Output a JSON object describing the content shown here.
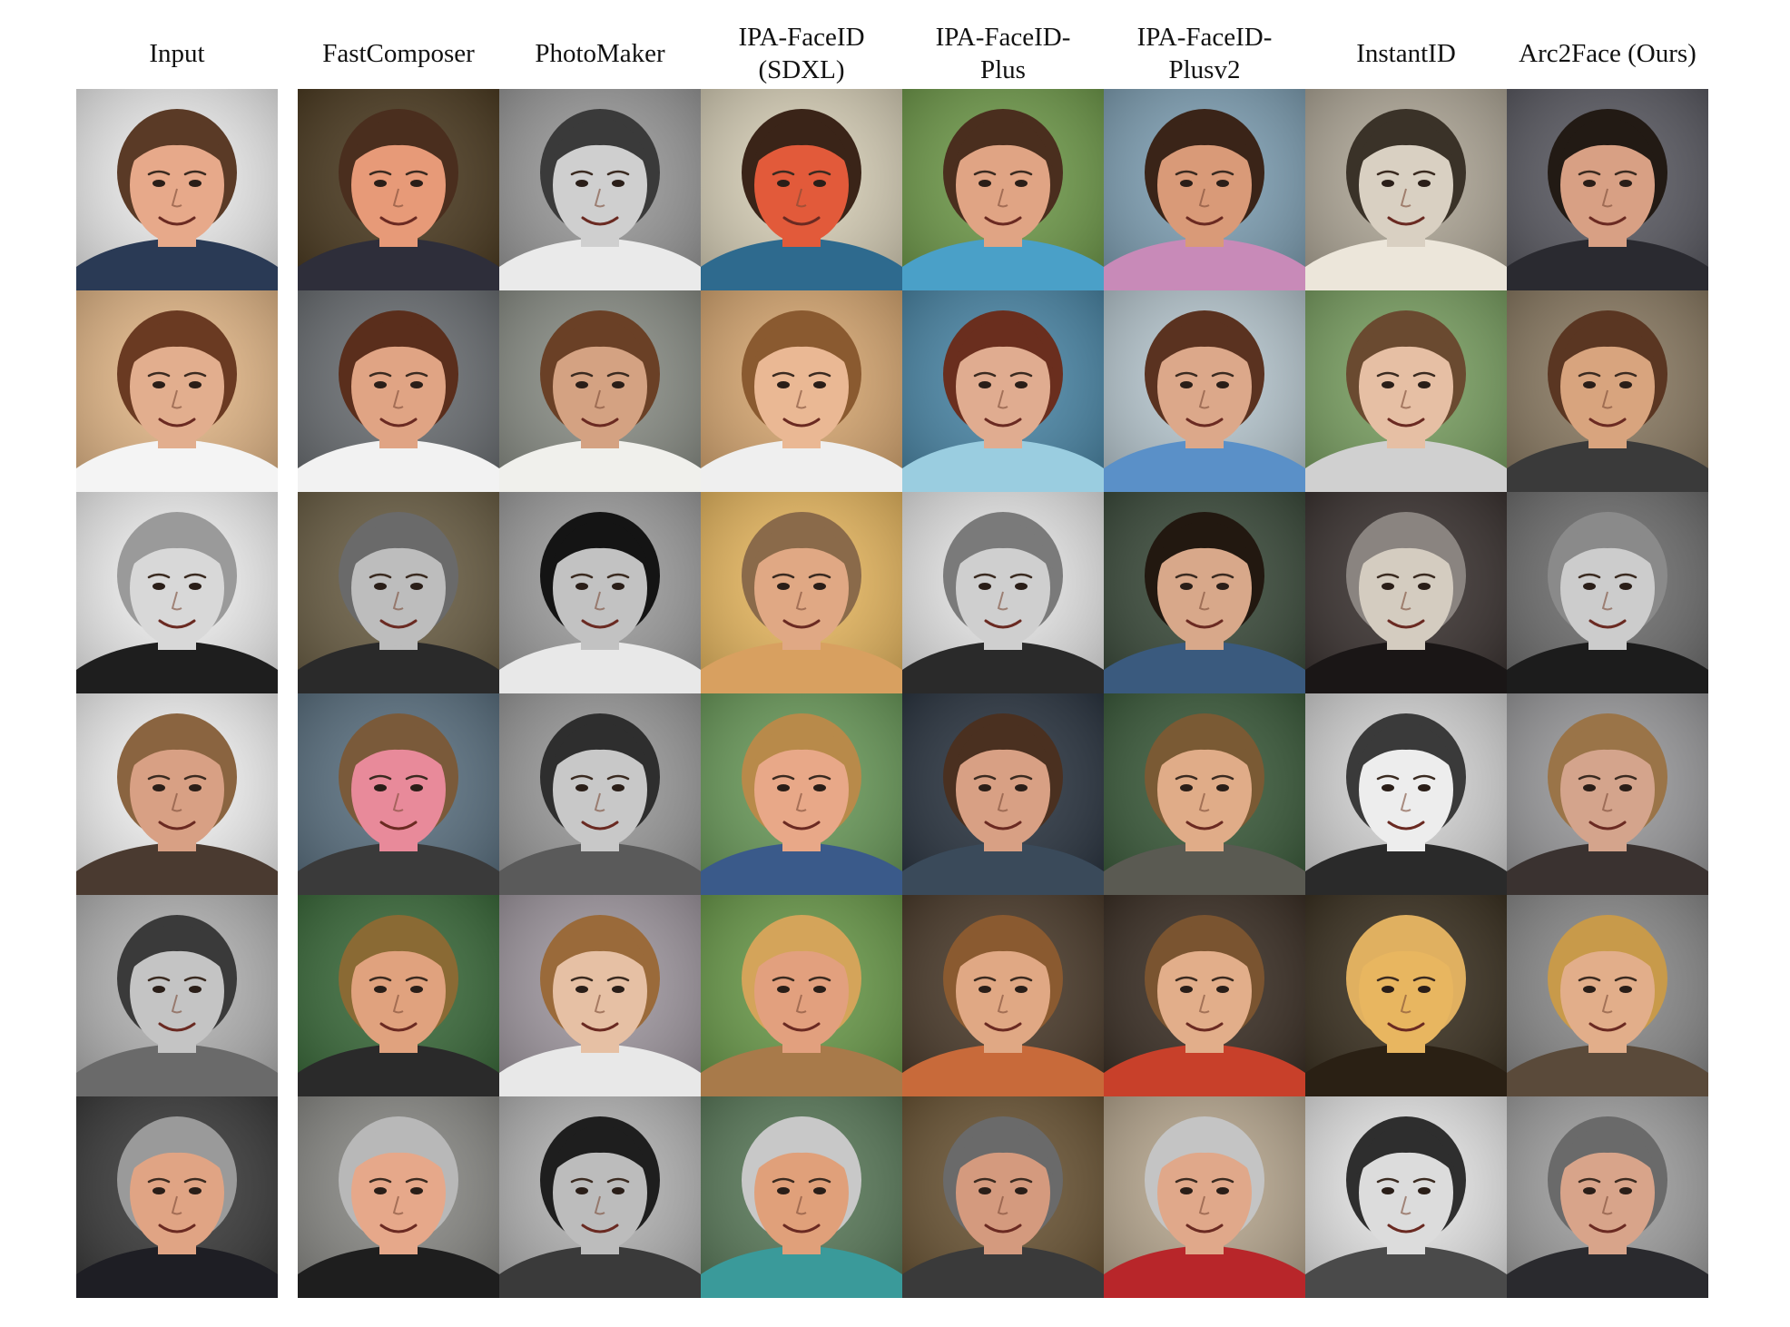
{
  "figure": {
    "columns": [
      "Input",
      "FastComposer",
      "PhotoMaker",
      "IPA-FaceID\n(SDXL)",
      "IPA-FaceID-\nPlus",
      "IPA-FaceID-\nPlusv2",
      "InstantID",
      "Arc2Face (Ours)"
    ],
    "rows": [
      {
        "cells": [
          {
            "bg": "#ececec",
            "skin": "#e7a98a",
            "hair": "#5a3a26",
            "cloth": "#2a3a55"
          },
          {
            "bg": "#4b3a20",
            "skin": "#e79a78",
            "hair": "#4a2e1e",
            "cloth": "#2e2e3a"
          },
          {
            "bg": "#9a9a9a",
            "skin": "#cfcfcf",
            "hair": "#3a3a3a",
            "cloth": "#eaeaea"
          },
          {
            "bg": "#d8d0b8",
            "skin": "#e25a3a",
            "hair": "#3a2418",
            "cloth": "#2e6a8e"
          },
          {
            "bg": "#6f9a4a",
            "skin": "#e0a484",
            "hair": "#4a2e1e",
            "cloth": "#4aa0c8"
          },
          {
            "bg": "#7fa0b4",
            "skin": "#d99a78",
            "hair": "#3a2418",
            "cloth": "#c88ab8"
          },
          {
            "bg": "#b0a898",
            "skin": "#d9d0c2",
            "hair": "#3a3228",
            "cloth": "#ece6da"
          },
          {
            "bg": "#5a5a62",
            "skin": "#d8a084",
            "hair": "#221a14",
            "cloth": "#2a2a30"
          }
        ]
      },
      {
        "cells": [
          {
            "bg": "#e4b888",
            "skin": "#e2ae8e",
            "hair": "#6a3a22",
            "cloth": "#f4f4f4"
          },
          {
            "bg": "#6a6e72",
            "skin": "#e0a484",
            "hair": "#5a2e1c",
            "cloth": "#f2f2f2"
          },
          {
            "bg": "#8a8e86",
            "skin": "#d4a282",
            "hair": "#6a4026",
            "cloth": "#f0f0ec"
          },
          {
            "bg": "#d8a872",
            "skin": "#eab894",
            "hair": "#8a5a30",
            "cloth": "#efefef"
          },
          {
            "bg": "#4a86a6",
            "skin": "#e0ac90",
            "hair": "#6a2e1e",
            "cloth": "#9acde0"
          },
          {
            "bg": "#b8c8d0",
            "skin": "#dca88a",
            "hair": "#5a3220",
            "cloth": "#5a90c8"
          },
          {
            "bg": "#7aa062",
            "skin": "#e6bfa4",
            "hair": "#6a4a30",
            "cloth": "#d0d0d0"
          },
          {
            "bg": "#8a7a62",
            "skin": "#d8a47e",
            "hair": "#5a3622",
            "cloth": "#3a3a3a"
          }
        ]
      },
      {
        "cells": [
          {
            "bg": "#f0f0f0",
            "skin": "#d8d8d8",
            "hair": "#9a9a9a",
            "cloth": "#1e1e1e"
          },
          {
            "bg": "#6a5e44",
            "skin": "#bdbdbd",
            "hair": "#6a6a6a",
            "cloth": "#2a2a2a"
          },
          {
            "bg": "#9e9e9e",
            "skin": "#c2c2c2",
            "hair": "#141414",
            "cloth": "#e8e8e8"
          },
          {
            "bg": "#e8b860",
            "skin": "#e0a884",
            "hair": "#8a6a4a",
            "cloth": "#d8a060"
          },
          {
            "bg": "#e6e6e6",
            "skin": "#cfcfcf",
            "hair": "#7a7a7a",
            "cloth": "#2a2a2a"
          },
          {
            "bg": "#3a4a3a",
            "skin": "#d8a88a",
            "hair": "#221810",
            "cloth": "#3a5a7e"
          },
          {
            "bg": "#3a3230",
            "skin": "#d4ccc0",
            "hair": "#8a8480",
            "cloth": "#1a1616"
          },
          {
            "bg": "#6e6e6e",
            "skin": "#cccccc",
            "hair": "#8a8a8a",
            "cloth": "#1c1c1c"
          }
        ]
      },
      {
        "cells": [
          {
            "bg": "#f2f2f2",
            "skin": "#d8a084",
            "hair": "#8a6440",
            "cloth": "#4a3a30"
          },
          {
            "bg": "#5a7080",
            "skin": "#e88a9a",
            "hair": "#7a5a3a",
            "cloth": "#3a3a3a"
          },
          {
            "bg": "#9a9a9a",
            "skin": "#c8c8c8",
            "hair": "#2e2e2e",
            "cloth": "#5a5a5a"
          },
          {
            "bg": "#6a9a5a",
            "skin": "#e8a888",
            "hair": "#b88a4a",
            "cloth": "#3a5a8a"
          },
          {
            "bg": "#2a3440",
            "skin": "#d8a084",
            "hair": "#4a3020",
            "cloth": "#3a4a5a"
          },
          {
            "bg": "#3a5a3a",
            "skin": "#e0ac88",
            "hair": "#7a5a34",
            "cloth": "#5a5a52"
          },
          {
            "bg": "#d4d4d4",
            "skin": "#ededed",
            "hair": "#3a3a3a",
            "cloth": "#2a2a2a"
          },
          {
            "bg": "#9a9a9c",
            "skin": "#d4a48c",
            "hair": "#9a7448",
            "cloth": "#3a3230"
          }
        ]
      },
      {
        "cells": [
          {
            "bg": "#b4b4b4",
            "skin": "#c4c4c4",
            "hair": "#3a3a3a",
            "cloth": "#6a6a6a"
          },
          {
            "bg": "#3a6a3a",
            "skin": "#e0a27e",
            "hair": "#8a6a34",
            "cloth": "#2a2a2a"
          },
          {
            "bg": "#a098a0",
            "skin": "#e6c0a4",
            "hair": "#9a6a3a",
            "cloth": "#e8e8e8"
          },
          {
            "bg": "#6a9a4a",
            "skin": "#e2a07e",
            "hair": "#d4a45a",
            "cloth": "#a87a4a"
          },
          {
            "bg": "#4a3a2a",
            "skin": "#e0a884",
            "hair": "#8a5a30",
            "cloth": "#c86a3a"
          },
          {
            "bg": "#3a2e24",
            "skin": "#e2ae8a",
            "hair": "#7a5430",
            "cloth": "#c8402a"
          },
          {
            "bg": "#3a3020",
            "skin": "#e8b660",
            "hair": "#e0b060",
            "cloth": "#2a2014"
          },
          {
            "bg": "#8a8a8a",
            "skin": "#e2ae8a",
            "hair": "#c89a4a",
            "cloth": "#5a4a3a"
          }
        ]
      },
      {
        "cells": [
          {
            "bg": "#3a3a3a",
            "skin": "#e0a484",
            "hair": "#9a9a9a",
            "cloth": "#1e1e24"
          },
          {
            "bg": "#8a8a86",
            "skin": "#e6a88a",
            "hair": "#b8b8b8",
            "cloth": "#1e1e1e"
          },
          {
            "bg": "#b4b4b4",
            "skin": "#bcbcbc",
            "hair": "#1e1e1e",
            "cloth": "#3a3a3a"
          },
          {
            "bg": "#5a7a5a",
            "skin": "#e0a07a",
            "hair": "#c8c8c8",
            "cloth": "#3a9a9a"
          },
          {
            "bg": "#6a5434",
            "skin": "#d49a7e",
            "hair": "#6a6a6a",
            "cloth": "#3a3a3a"
          },
          {
            "bg": "#b8a890",
            "skin": "#e0a88a",
            "hair": "#c4c4c4",
            "cloth": "#b8262a"
          },
          {
            "bg": "#e6e6e6",
            "skin": "#dcdcdc",
            "hair": "#2e2e2e",
            "cloth": "#4a4a4a"
          },
          {
            "bg": "#a0a0a0",
            "skin": "#d8a48a",
            "hair": "#6a6a6a",
            "cloth": "#2a2a2e"
          }
        ]
      }
    ]
  }
}
